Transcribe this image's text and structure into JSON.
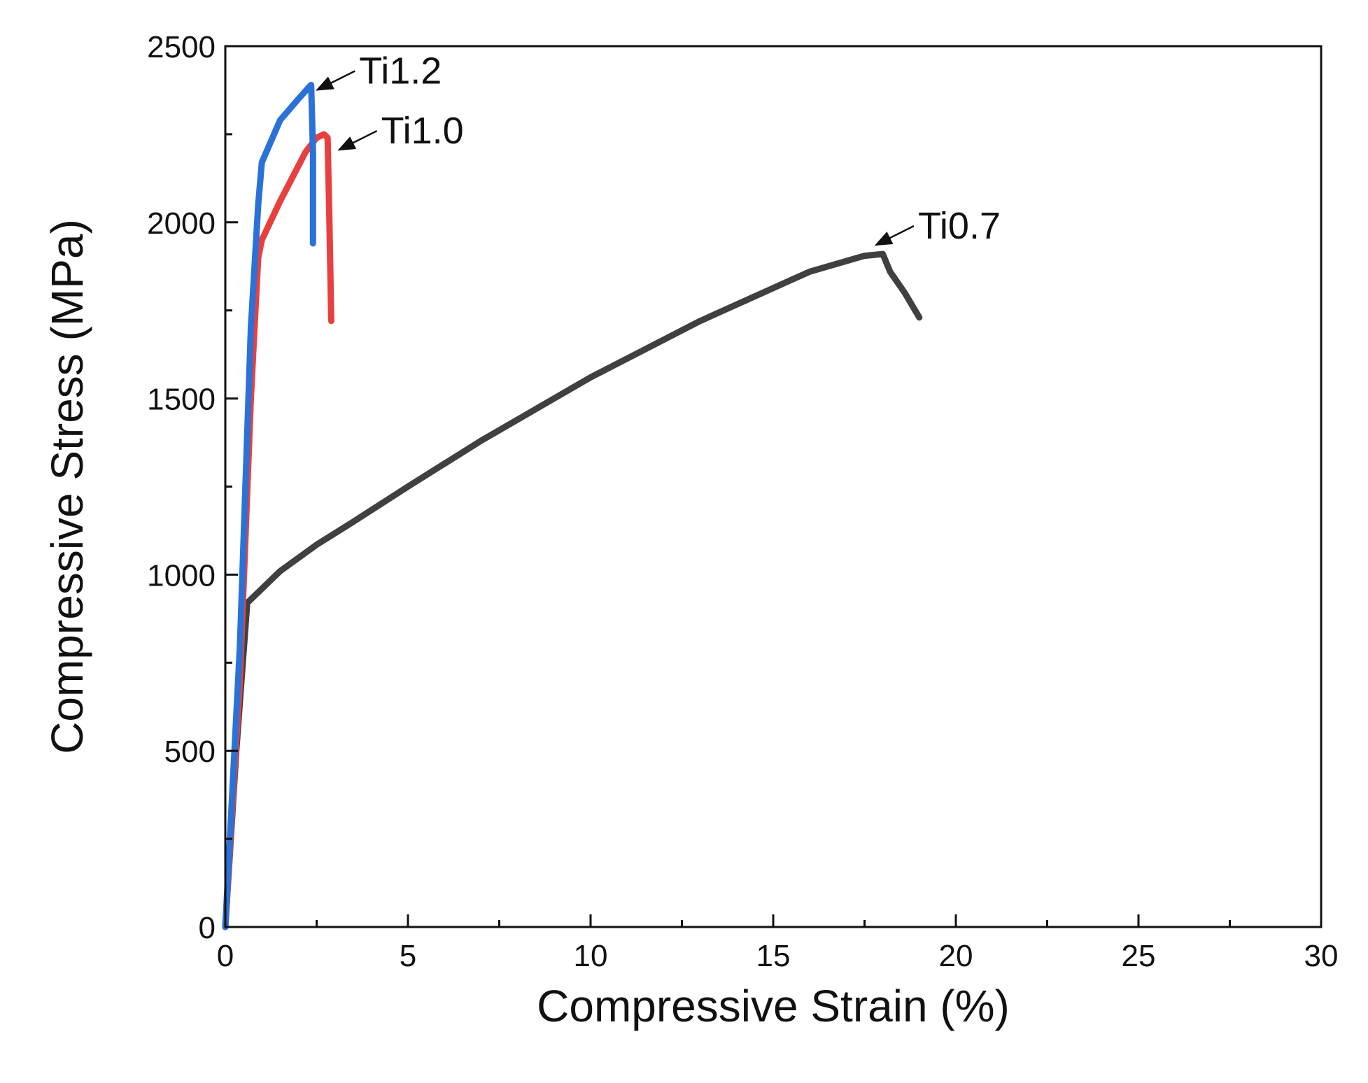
{
  "chart_data": {
    "type": "line",
    "title": "",
    "xlabel": "Compressive Strain (%)",
    "ylabel": "Compressive Stress (MPa)",
    "xlim": [
      0,
      30
    ],
    "ylim": [
      0,
      2500
    ],
    "xticks": [
      0,
      5,
      10,
      15,
      20,
      25,
      30
    ],
    "yticks": [
      0,
      500,
      1000,
      1500,
      2000,
      2500
    ],
    "grid": false,
    "series": [
      {
        "name": "Ti0.7",
        "color": "#404040",
        "x": [
          0,
          0.3,
          0.6,
          0.9,
          1.5,
          2.5,
          3.5,
          5,
          7,
          10,
          13,
          16,
          17.5,
          18.0,
          18.2,
          18.6,
          19.0
        ],
        "y": [
          0,
          500,
          920,
          950,
          1010,
          1085,
          1150,
          1250,
          1380,
          1560,
          1720,
          1860,
          1905,
          1910,
          1860,
          1800,
          1730
        ]
      },
      {
        "name": "Ti1.0",
        "color": "#e8403f",
        "x": [
          0,
          0.4,
          0.7,
          0.9,
          1.0,
          1.5,
          2.2,
          2.5,
          2.7,
          2.8,
          2.85,
          2.9
        ],
        "y": [
          0,
          700,
          1500,
          1900,
          1950,
          2060,
          2200,
          2240,
          2250,
          2240,
          2000,
          1720
        ]
      },
      {
        "name": "Ti1.2",
        "color": "#2a72d8",
        "x": [
          0,
          0.4,
          0.7,
          0.9,
          1.0,
          1.5,
          2.0,
          2.3,
          2.35,
          2.4,
          2.4
        ],
        "y": [
          0,
          800,
          1700,
          2050,
          2170,
          2290,
          2350,
          2385,
          2390,
          2200,
          1940
        ]
      }
    ],
    "annotations": [
      {
        "series": "Ti1.2",
        "text": "Ti1.2",
        "point": [
          2.4,
          2370
        ]
      },
      {
        "series": "Ti1.0",
        "text": "Ti1.0",
        "point": [
          3.0,
          2200
        ]
      },
      {
        "series": "Ti0.7",
        "text": "Ti0.7",
        "point": [
          17.7,
          1930
        ]
      }
    ]
  }
}
